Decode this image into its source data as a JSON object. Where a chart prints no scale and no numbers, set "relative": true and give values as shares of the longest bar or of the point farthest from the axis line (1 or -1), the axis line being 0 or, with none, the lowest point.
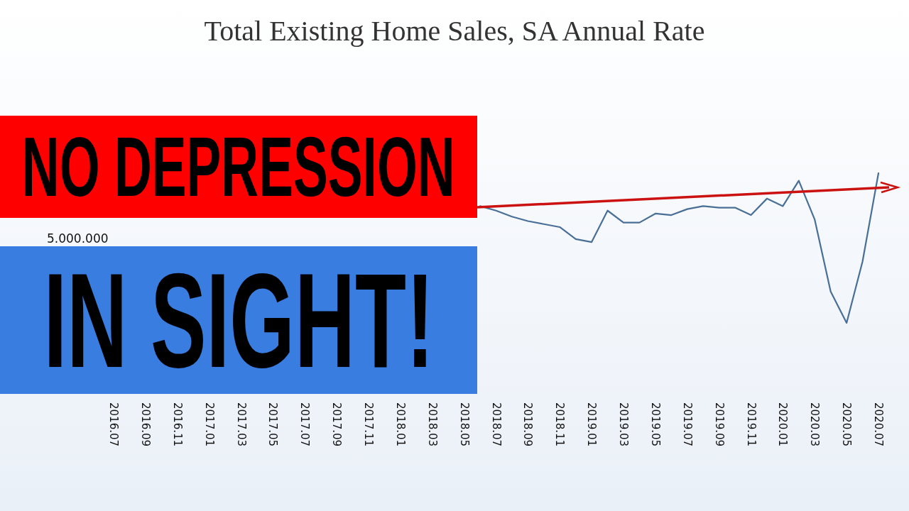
{
  "chart_data": {
    "type": "line",
    "title": "Total Existing Home Sales, SA Annual Rate",
    "categories": [
      "2016.07",
      null,
      "2016.09",
      null,
      "2016.11",
      null,
      "2017.01",
      null,
      "2017.03",
      null,
      "2017.05",
      null,
      "2017.07",
      null,
      "2017.09",
      null,
      "2017.11",
      null,
      "2018.01",
      null,
      "2018.03",
      null,
      "2018.05",
      null,
      "2018.07",
      null,
      "2018.09",
      null,
      "2018.11",
      null,
      "2019.01",
      null,
      "2019.03",
      null,
      "2019.05",
      null,
      "2019.07",
      null,
      "2019.09",
      null,
      "2019.11",
      null,
      "2020.01",
      null,
      "2020.03",
      null,
      "2020.05",
      null,
      "2020.07"
    ],
    "series": [
      {
        "color": "#4a6f96",
        "values": [
          null,
          null,
          null,
          null,
          null,
          null,
          null,
          null,
          null,
          null,
          null,
          null,
          null,
          null,
          null,
          null,
          null,
          null,
          null,
          null,
          null,
          null,
          null,
          0.78,
          0.75,
          0.71,
          0.68,
          0.66,
          0.64,
          0.56,
          0.54,
          0.75,
          0.67,
          0.67,
          0.73,
          0.72,
          0.76,
          0.78,
          0.77,
          0.77,
          0.72,
          0.83,
          0.78,
          0.95,
          0.69,
          0.21,
          0,
          0.41,
          1
        ]
      }
    ],
    "relative": true,
    "marker": "none",
    "line_style": "solid",
    "annotations": [
      "NO DEPRESSION",
      "IN SIGHT!",
      "5.000.000"
    ]
  }
}
